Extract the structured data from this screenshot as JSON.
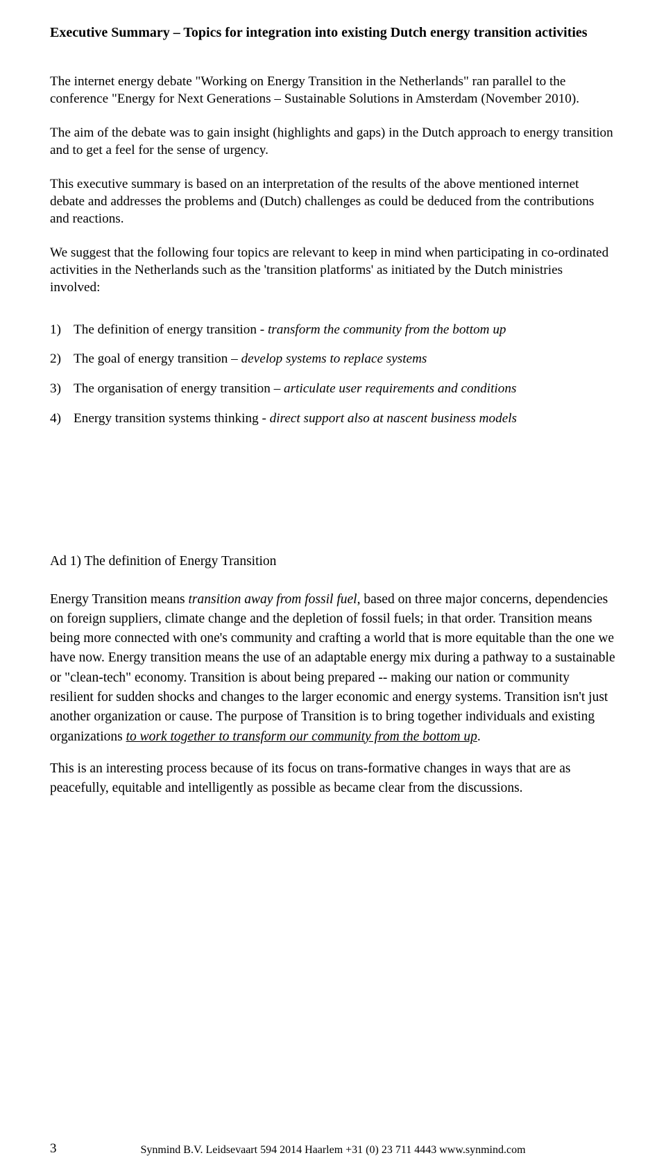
{
  "title": "Executive Summary – Topics for integration into existing Dutch energy transition activities",
  "intro1": "The internet energy debate \"Working on Energy Transition in the Netherlands\" ran parallel to the conference \"Energy for Next Generations – Sustainable Solutions in Amsterdam (November 2010).",
  "intro2": "The aim of the debate was to gain insight (highlights and gaps) in the Dutch approach to energy transition and to get a feel for the sense of urgency.",
  "intro3": "This executive summary is based on an interpretation of the results of the above mentioned internet debate and addresses the problems and (Dutch) challenges as could be deduced from the contributions and reactions.",
  "intro4": "We suggest that the following four topics are relevant to keep in mind when participating in co-ordinated activities in the Netherlands such as the 'transition platforms' as initiated by the Dutch ministries involved:",
  "topics": [
    {
      "num": "1)",
      "plain": "The definition of energy transition -  ",
      "italic": "transform the community from the bottom up"
    },
    {
      "num": "2)",
      "plain": "The goal of energy transition – ",
      "italic": "develop systems  to replace systems"
    },
    {
      "num": "3)",
      "plain": "The organisation of energy transition – ",
      "italic": "articulate user requirements and conditions"
    },
    {
      "num": "4)",
      "plain": "Energy transition systems thinking - ",
      "italic": "direct support also at nascent business models"
    }
  ],
  "ad1": {
    "heading": "Ad 1) The definition of Energy Transition",
    "p1_lead": "Energy Transition means ",
    "p1_italic1": "transition away from fossil fuel",
    "p1_mid": ", based on three major concerns, dependencies on foreign suppliers, climate change and the depletion of fossil fuels; in that order. Transition means being more connected with one's community and crafting a world that is more equitable than the one we have now. Energy transition means the use of an adaptable energy mix during a pathway to a sustainable or \"clean-tech\" economy. Transition is about being prepared -- making our nation or community resilient for sudden shocks and changes to the larger economic and energy systems. Transition isn't just another organization or cause. The purpose of Transition is to bring together individuals and existing organizations ",
    "p1_under_ital": "to work together to transform our community from the bottom up",
    "p1_tail": ".",
    "p2": "This is an interesting process because of its focus on trans-formative changes in ways that are as peacefully, equitable and intelligently as possible as became clear from the discussions."
  },
  "footer": {
    "page": "3",
    "text": "Synmind B.V. Leidsevaart 594 2014 Haarlem +31 (0) 23 711 4443 www.synmind.com"
  }
}
